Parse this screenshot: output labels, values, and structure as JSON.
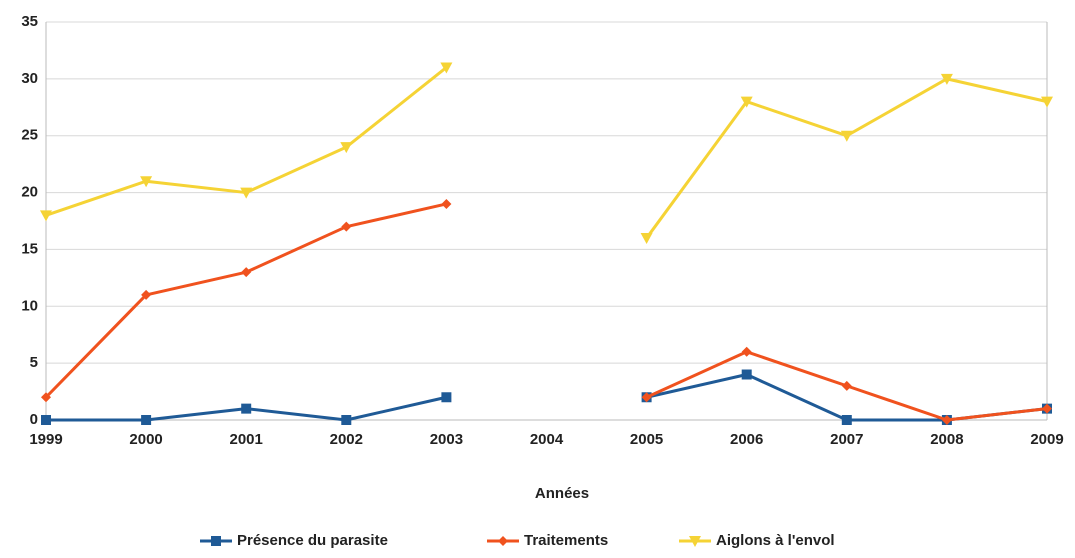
{
  "chart_data": {
    "type": "line",
    "x_label": "Années",
    "categories": [
      "1999",
      "2000",
      "2001",
      "2002",
      "2003",
      "2004",
      "2005",
      "2006",
      "2007",
      "2008",
      "2009"
    ],
    "series": [
      {
        "name": "Présence du parasite",
        "color": "#1f5a96",
        "marker": "square",
        "values": [
          0,
          0,
          1,
          0,
          2,
          null,
          2,
          4,
          0,
          0,
          1
        ]
      },
      {
        "name": "Traitements",
        "color": "#f0521e",
        "marker": "diamond",
        "values": [
          2,
          11,
          13,
          17,
          19,
          null,
          2,
          6,
          3,
          0,
          1
        ]
      },
      {
        "name": "Aiglons à l'envol",
        "color": "#f5d335",
        "marker": "triangle-down",
        "values": [
          18,
          21,
          20,
          24,
          31,
          null,
          16,
          28,
          25,
          30,
          28
        ]
      }
    ],
    "ylim": [
      0,
      35
    ],
    "yticks": [
      0,
      5,
      10,
      15,
      20,
      25,
      30,
      35
    ],
    "grid": true,
    "legend": "bottom"
  }
}
